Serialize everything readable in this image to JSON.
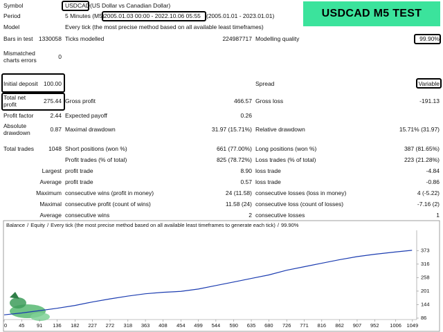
{
  "badge": "USDCAD M5 TEST",
  "rows": [
    {
      "label": "Symbol",
      "value": "USDCAD",
      "note": "(US Dollar vs Canadian Dollar)"
    },
    {
      "label": "Period",
      "value": "5 Minutes (M5)",
      "range": "2005.01.03 00:00 - 2022.10.06 05:55",
      "note": "(2005.01.01 - 2023.01.01)"
    },
    {
      "label": "Model",
      "value": "Every tick (the most precise method based on all available least timeframes)"
    },
    {
      "label": "Bars in test",
      "value": "1330058",
      "label2": "Ticks modelled",
      "value2": "224987717",
      "label3": "Modelling quality",
      "value3": "99.90%"
    },
    {
      "label": "Mismatched charts errors",
      "value": "0"
    },
    {
      "label": "Initial deposit",
      "value": "100.00",
      "label3": "Spread",
      "value3": "Variable"
    },
    {
      "label": "Total net profit",
      "value": "275.44",
      "label2": "Gross profit",
      "value2": "466.57",
      "label3": "Gross loss",
      "value3": "-191.13"
    },
    {
      "label": "Profit factor",
      "value": "2.44",
      "label2": "Expected payoff",
      "value2": "0.26"
    },
    {
      "label": "Absolute drawdown",
      "value": "0.87",
      "label2": "Maximal drawdown",
      "value2": "31.97 (15.71%)",
      "label3": "Relative drawdown",
      "value3": "15.71% (31.97)"
    },
    {
      "label": "Total trades",
      "value": "1048",
      "label2": "Short positions (won %)",
      "value2": "661 (77.00%)",
      "label3": "Long positions (won %)",
      "value3": "387 (81.65%)"
    },
    {
      "label2": "Profit trades (% of total)",
      "value2": "825 (78.72%)",
      "label3": "Loss trades (% of total)",
      "value3": "223 (21.28%)"
    },
    {
      "label": "Largest",
      "label2": "profit trade",
      "value2": "8.90",
      "label3": "loss trade",
      "value3": "-4.84"
    },
    {
      "label": "Average",
      "label2": "profit trade",
      "value2": "0.57",
      "label3": "loss trade",
      "value3": "-0.86"
    },
    {
      "label": "Maximum",
      "label2": "consecutive wins (profit in money)",
      "value2": "24 (11.58)",
      "label3": "consecutive losses (loss in money)",
      "value3": "4 (-5.22)"
    },
    {
      "label": "Maximal",
      "label2": "consecutive profit (count of wins)",
      "value2": "11.58 (24)",
      "label3": "consecutive loss (count of losses)",
      "value3": "-7.16 (2)"
    },
    {
      "label": "Average",
      "label2": "consecutive wins",
      "value2": "2",
      "label3": "consecutive losses",
      "value3": "1"
    }
  ],
  "chart_data": {
    "type": "line",
    "separator": "/",
    "equity_label": "Equity",
    "equity_color": "#1a9a2a",
    "title": "Every tick (the most precise method based on all available least timeframes to generate each tick)",
    "quality": "99.90%",
    "x": [
      0,
      45,
      91,
      136,
      182,
      227,
      272,
      318,
      363,
      408,
      454,
      499,
      544,
      590,
      635,
      680,
      726,
      771,
      816,
      862,
      907,
      952,
      1006,
      1048
    ],
    "series": [
      {
        "name": "Balance",
        "color": "#1a3bb0",
        "values": [
          100,
          108,
          118,
          128,
          140,
          155,
          168,
          180,
          190,
          196,
          200,
          210,
          225,
          240,
          255,
          270,
          290,
          305,
          320,
          335,
          348,
          358,
          368,
          375
        ]
      }
    ],
    "xlim": [
      0,
      1060
    ],
    "ylim": [
      80,
      460
    ],
    "xticks": [
      0,
      45,
      91,
      136,
      182,
      227,
      272,
      318,
      363,
      408,
      454,
      499,
      544,
      590,
      635,
      680,
      726,
      771,
      816,
      862,
      907,
      952,
      1006,
      1049
    ],
    "yticks": [
      86,
      144,
      201,
      258,
      316,
      373
    ]
  }
}
